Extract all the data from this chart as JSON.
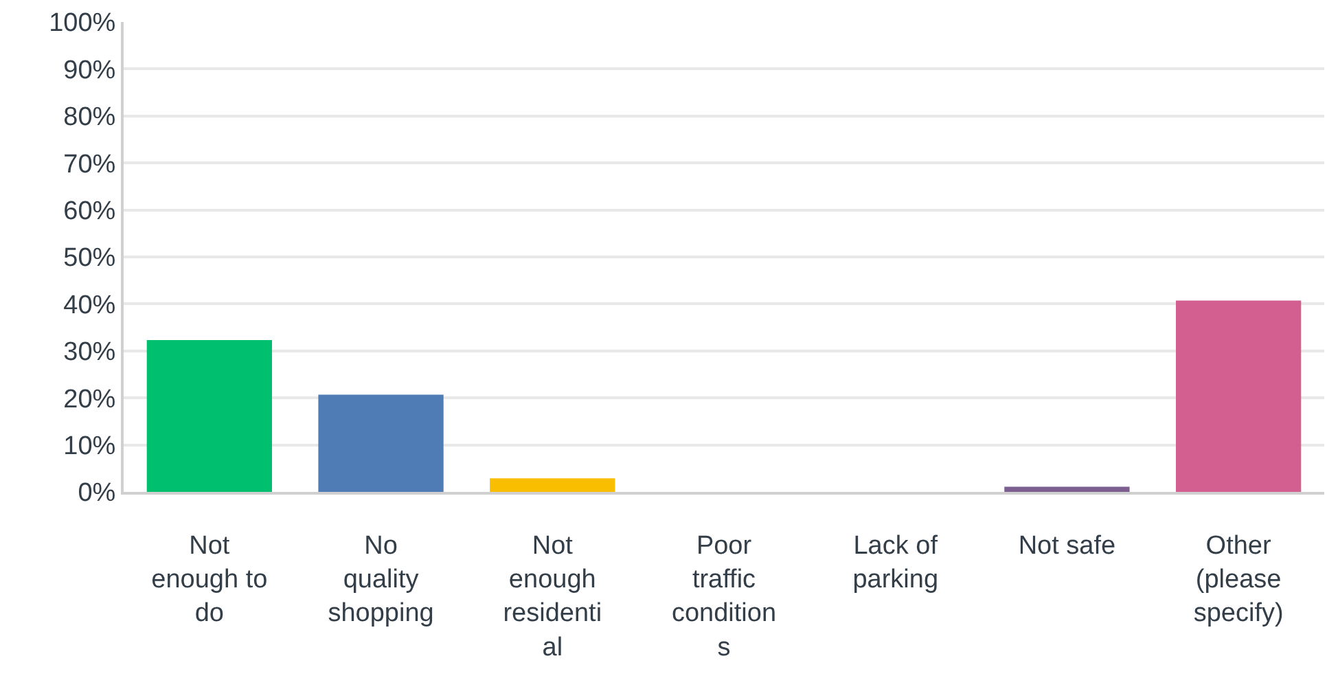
{
  "chart_data": {
    "type": "bar",
    "categories": [
      "Not enough to do",
      "No quality shopping",
      "Not enough residential",
      "Poor traffic conditions",
      "Lack of parking",
      "Not safe",
      "Other (please specify)"
    ],
    "values": [
      32.3,
      20.7,
      2.9,
      0,
      0,
      1.1,
      40.7
    ],
    "colors": [
      "#00bf6f",
      "#507cb6",
      "#f9be00",
      "#6bc8cd",
      "#ff8b4f",
      "#7d5e90",
      "#d25f90"
    ],
    "ylim": [
      0,
      100
    ],
    "yticks": [
      {
        "value": 0,
        "label": "0%"
      },
      {
        "value": 10,
        "label": "10%"
      },
      {
        "value": 20,
        "label": "20%"
      },
      {
        "value": 30,
        "label": "30%"
      },
      {
        "value": 40,
        "label": "40%"
      },
      {
        "value": 50,
        "label": "50%"
      },
      {
        "value": 60,
        "label": "60%"
      },
      {
        "value": 70,
        "label": "70%"
      },
      {
        "value": 80,
        "label": "80%"
      },
      {
        "value": 90,
        "label": "90%"
      },
      {
        "value": 100,
        "label": "100%"
      }
    ],
    "grid": "y"
  }
}
